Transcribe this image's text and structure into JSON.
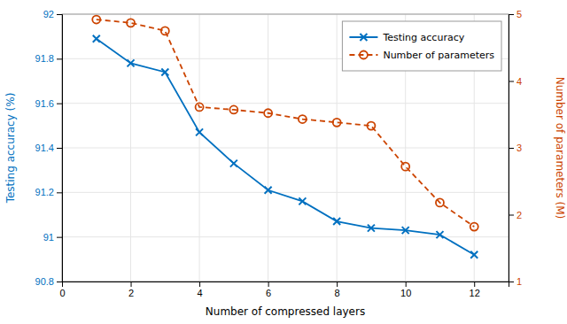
{
  "chart_data": {
    "type": "line",
    "x_label": "Number of compressed layers",
    "y_label": "Testing accuracy (%)",
    "y2_label": "Number of parameters (M)",
    "x": [
      1,
      2,
      3,
      4,
      5,
      6,
      7,
      8,
      9,
      10,
      11,
      12
    ],
    "series": [
      {
        "name": "Testing accuracy",
        "color": "#0070C0",
        "marker": "x",
        "line_style": "solid",
        "values": [
          91.89,
          91.78,
          91.74,
          91.47,
          91.33,
          91.21,
          91.16,
          91.07,
          91.04,
          91.03,
          91.01,
          90.92
        ]
      },
      {
        "name": "Number of parameters",
        "color": "#CC4400",
        "marker": "o",
        "line_style": "dashed",
        "axis": "y2",
        "values": [
          4.92,
          4.87,
          4.75,
          3.61,
          3.57,
          3.52,
          3.43,
          3.38,
          3.33,
          2.72,
          2.18,
          1.82
        ]
      }
    ],
    "xlim": [
      0,
      13
    ],
    "xticks": [
      0,
      2,
      4,
      6,
      8,
      10,
      12
    ],
    "ylim": [
      90.8,
      92.0
    ],
    "yticks": [
      90.8,
      91,
      91.2,
      91.4,
      91.6,
      91.8,
      92
    ],
    "y2lim": [
      1,
      5
    ],
    "y2ticks": [
      1,
      2,
      3,
      4,
      5
    ],
    "grid": true,
    "legend": "upper right"
  }
}
